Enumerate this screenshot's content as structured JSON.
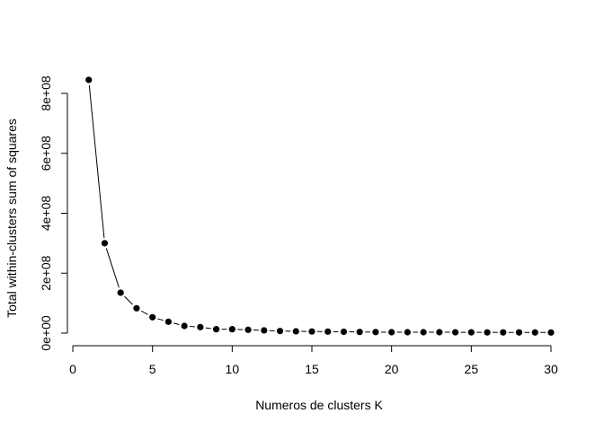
{
  "chart_data": {
    "type": "line",
    "title": "",
    "xlabel": "Numeros de clusters K",
    "ylabel": "Total within-clusters sum of squares",
    "xlim": [
      0,
      30
    ],
    "ylim": [
      0,
      800000000
    ],
    "xticks": [
      0,
      5,
      10,
      15,
      20,
      25,
      30
    ],
    "xtick_labels": [
      "0",
      "5",
      "10",
      "15",
      "20",
      "25",
      "30"
    ],
    "yticks": [
      0,
      200000000,
      400000000,
      600000000,
      800000000
    ],
    "ytick_labels": [
      "0e+00",
      "2e+08",
      "4e+08",
      "6e+08",
      "8e+08"
    ],
    "grid": false,
    "legend": "none",
    "marker": "filled-circle",
    "line_color": "#000000",
    "x": [
      1,
      2,
      3,
      4,
      5,
      6,
      7,
      8,
      9,
      10,
      11,
      12,
      13,
      14,
      15,
      16,
      17,
      18,
      19,
      20,
      21,
      22,
      23,
      24,
      25,
      26,
      27,
      28,
      29,
      30
    ],
    "values": [
      845000000,
      300000000,
      135000000,
      83000000,
      53000000,
      38000000,
      24000000,
      20000000,
      13000000,
      13000000,
      11000000,
      9000000,
      7000000,
      6000000,
      5500000,
      5000000,
      4500000,
      4000000,
      3500000,
      3000000,
      3000000,
      3000000,
      3000000,
      2800000,
      2600000,
      2500000,
      2400000,
      2300000,
      2200000,
      2100000
    ]
  }
}
